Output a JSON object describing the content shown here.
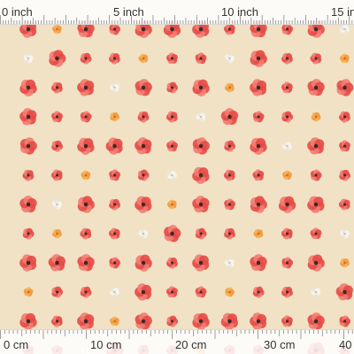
{
  "pattern": {
    "background_color": "#f1e2c6",
    "motifs": [
      "red-poppy-icon",
      "small-red-poppy-icon",
      "orange-blossom-icon",
      "white-bloom-icon"
    ],
    "colors": {
      "poppy": "#e64a45",
      "poppy_light": "#f27d72",
      "center": "#3b2a2a",
      "blossom": "#f39a3b",
      "white": "#f7f5f0"
    }
  },
  "ruler_top": {
    "unit": "inch",
    "labels": [
      "0 inch",
      "5 inch",
      "10 inch",
      "15 in"
    ]
  },
  "ruler_bottom": {
    "unit": "cm",
    "labels": [
      "0 cm",
      "10 cm",
      "20 cm",
      "30 cm",
      "40"
    ]
  }
}
